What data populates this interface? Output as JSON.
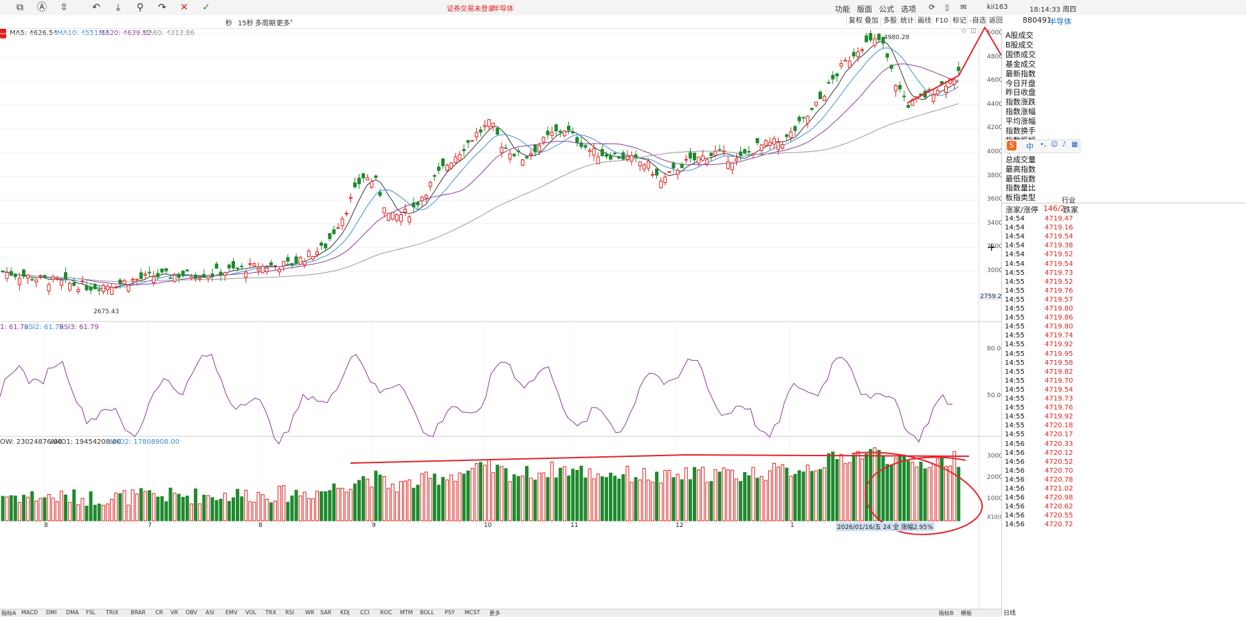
{
  "toolbar": {
    "title_red": "证券交易未登录",
    "title_sector": "半导体",
    "menu": [
      "功能",
      "版面",
      "公式",
      "选项"
    ],
    "user": "kii163",
    "clock": "18:14:33 周四"
  },
  "periods": {
    "items": [
      "秒",
      "15秒",
      "多周期",
      "更多"
    ]
  },
  "tools": {
    "items": [
      "复权",
      "叠加",
      "多股",
      "统计",
      "画线",
      "F10",
      "标记",
      "-自选",
      "返回"
    ]
  },
  "ma": {
    "ma5": "MA5: 4626.54",
    "ma10": "MA10: 4551.13",
    "ma20": "MA20: 4639.12",
    "ma60": "MA60: 4313.86"
  },
  "price_notes": {
    "high": "4980.28",
    "low": "2675.43",
    "current": "2759.2"
  },
  "price_axis": [
    "5000",
    "4800",
    "4600",
    "4400",
    "4200",
    "4000",
    "3800",
    "3600",
    "3400",
    "3200",
    "3000"
  ],
  "rsi": {
    "label1": "1: 61.79",
    "label2": "RSI2: 61.79",
    "label3": "RSI3: 61.79",
    "axis": [
      "80.00",
      "50.00"
    ]
  },
  "amount": {
    "label1": "OW: 23024876.00",
    "label2": "AMO1: 19454208.00",
    "label3": "AMO2: 17808908.00",
    "axis": [
      "30000",
      "20000",
      "10000"
    ],
    "unit": "X10(0)"
  },
  "months": [
    "8",
    "7",
    "8",
    "9",
    "10",
    "11",
    "12",
    "1"
  ],
  "date_note": "2026/01/16/五  24 全 涨幅2.95%",
  "quote": {
    "code": "880491",
    "name": "半导体",
    "fields": [
      "A股成交",
      "B股成交",
      "国债成交",
      "基金成交",
      "最新指数",
      "今日开盘",
      "昨日收盘",
      "指数涨跌",
      "指数涨幅",
      "平均涨幅",
      "指数换手",
      "指数振幅",
      "总成交额",
      "总成交量",
      "最高指数",
      "最低指数",
      "指数量比",
      "板指类型"
    ],
    "industry": "行业",
    "updown_label": "涨家/涨停",
    "updown_value": "146/2",
    "down_label": "跌家"
  },
  "ticks": [
    {
      "t": "14:54",
      "v": "4719.47"
    },
    {
      "t": "14:54",
      "v": "4719.16"
    },
    {
      "t": "14:54",
      "v": "4719.54"
    },
    {
      "t": "14:54",
      "v": "4719.38"
    },
    {
      "t": "14:54",
      "v": "4719.52"
    },
    {
      "t": "14:54",
      "v": "4719.54"
    },
    {
      "t": "14:55",
      "v": "4719.73"
    },
    {
      "t": "14:55",
      "v": "4719.52"
    },
    {
      "t": "14:55",
      "v": "4719.76"
    },
    {
      "t": "14:55",
      "v": "4719.57"
    },
    {
      "t": "14:55",
      "v": "4719.80"
    },
    {
      "t": "14:55",
      "v": "4719.86"
    },
    {
      "t": "14:55",
      "v": "4719.80"
    },
    {
      "t": "14:55",
      "v": "4719.74"
    },
    {
      "t": "14:55",
      "v": "4719.92"
    },
    {
      "t": "14:55",
      "v": "4719.95"
    },
    {
      "t": "14:55",
      "v": "4719.58"
    },
    {
      "t": "14:55",
      "v": "4719.82"
    },
    {
      "t": "14:55",
      "v": "4719.70"
    },
    {
      "t": "14:55",
      "v": "4719.54"
    },
    {
      "t": "14:55",
      "v": "4719.73"
    },
    {
      "t": "14:55",
      "v": "4719.76"
    },
    {
      "t": "14:55",
      "v": "4719.92"
    },
    {
      "t": "14:55",
      "v": "4720.18"
    },
    {
      "t": "14:55",
      "v": "4720.17"
    },
    {
      "t": "14:56",
      "v": "4720.33"
    },
    {
      "t": "14:56",
      "v": "4720.12"
    },
    {
      "t": "14:56",
      "v": "4720.52"
    },
    {
      "t": "14:56",
      "v": "4720.70"
    },
    {
      "t": "14:56",
      "v": "4720.78"
    },
    {
      "t": "14:56",
      "v": "4721.02"
    },
    {
      "t": "14:56",
      "v": "4720.98"
    },
    {
      "t": "14:56",
      "v": "4720.62"
    },
    {
      "t": "14:56",
      "v": "4720.55"
    },
    {
      "t": "14:56",
      "v": "4720.72"
    }
  ],
  "bottom_tabs": [
    "指标A",
    "MACD",
    "DMI",
    "DMA",
    "FSL",
    "TRIX",
    "BRAR",
    "CR",
    "VR",
    "OBV",
    "ASI",
    "EMV",
    "VOL",
    "TRX",
    "RSI",
    "WR",
    "SAR",
    "KDJ",
    "CCI",
    "ROC",
    "MTM",
    "BOLL",
    "PSY",
    "MCST",
    "更多"
  ],
  "bottom_right": [
    "指标B",
    "模板"
  ],
  "bottom_right_status": "日线",
  "ime": {
    "logo": "S",
    "mode": "中"
  },
  "colors": {
    "up": "#e0201c",
    "down": "#1e8a2e",
    "ma5": "#333333",
    "ma10": "#3a8fd8",
    "ma20": "#8b3a9a",
    "ma60": "#999999",
    "annotation": "#e3242b"
  }
}
